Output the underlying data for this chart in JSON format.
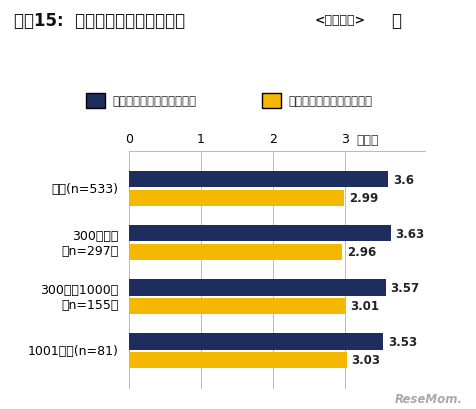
{
  "title": "【図15:  一人前になるまでの期間<企業調査>】",
  "title_bold_part": "【図15:  一人前になるまでの期間",
  "title_small_part": "<企業調査>",
  "title_close": "】",
  "legend_actual": "一人前になる期間（実際）",
  "legend_ideal": "一人前になる期間（理想）",
  "categories": [
    "全体(n=533)",
    "300名未満\n（n=297）",
    "300名～1000名\n（n=155）",
    "1001名～(n=81)"
  ],
  "actual_values": [
    3.6,
    3.63,
    3.57,
    3.53
  ],
  "ideal_values": [
    2.99,
    2.96,
    3.01,
    3.03
  ],
  "actual_labels": [
    "3.6",
    "3.63",
    "3.57",
    "3.53"
  ],
  "ideal_labels": [
    "2.99",
    "2.96",
    "3.01",
    "3.03"
  ],
  "color_actual": "#1c2d5e",
  "color_ideal": "#f5b800",
  "xlim": [
    0,
    4.1
  ],
  "xticks": [
    0,
    1,
    2,
    3
  ],
  "xlabel_unit": "（年）",
  "background_color": "#ffffff",
  "grid_color": "#bbbbbb",
  "watermark": "ReseMom.",
  "bar_height": 0.3,
  "label_fontsize": 8.5,
  "tick_fontsize": 9.0,
  "ytick_fontsize": 9.0,
  "title_fontsize": 12.0,
  "title_small_fontsize": 9.0,
  "legend_fontsize": 8.5
}
